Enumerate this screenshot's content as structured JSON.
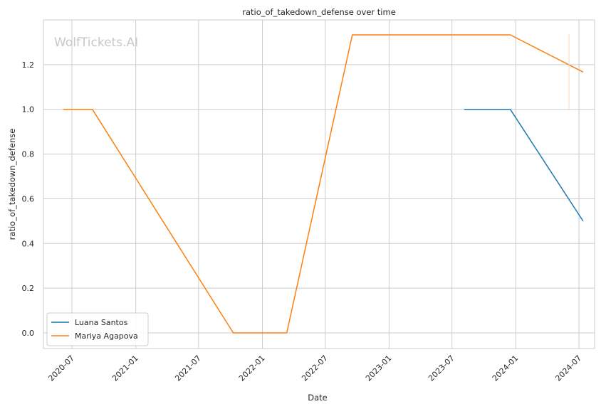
{
  "chart_data": {
    "type": "line",
    "title": "ratio_of_takedown_defense over time",
    "xlabel": "Date",
    "ylabel": "ratio_of_takedown_defense",
    "watermark": "WolfTickets.AI",
    "xlim": [
      "2020-04-10",
      "2024-08-15"
    ],
    "ylim": [
      -0.07,
      1.4
    ],
    "x_ticks": [
      "2020-07-01",
      "2021-01-01",
      "2021-07-01",
      "2022-01-01",
      "2022-07-01",
      "2023-01-01",
      "2023-07-01",
      "2024-01-01",
      "2024-07-01"
    ],
    "x_tick_labels": [
      "2020-07",
      "2021-01",
      "2021-07",
      "2022-01",
      "2022-07",
      "2023-01",
      "2023-07",
      "2024-01",
      "2024-07"
    ],
    "y_ticks": [
      0.0,
      0.2,
      0.4,
      0.6,
      0.8,
      1.0,
      1.2
    ],
    "y_tick_labels": [
      "0.0",
      "0.2",
      "0.4",
      "0.6",
      "0.8",
      "1.0",
      "1.2"
    ],
    "grid": true,
    "legend_position": "lower-left",
    "series": [
      {
        "name": "Luana Santos",
        "color": "#1f77b4",
        "x": [
          "2023-08-05",
          "2023-12-16",
          "2024-07-13"
        ],
        "values": [
          1.0,
          1.0,
          0.5
        ]
      },
      {
        "name": "Mariya Agapova",
        "color": "#ff7f0e",
        "x": [
          "2020-06-06",
          "2020-08-29",
          "2021-10-09",
          "2022-03-12",
          "2022-09-17",
          "2023-12-16",
          "2024-07-13"
        ],
        "values": [
          1.0,
          1.0,
          0.0,
          0.0,
          1.3333,
          1.3333,
          1.1667
        ]
      }
    ]
  }
}
